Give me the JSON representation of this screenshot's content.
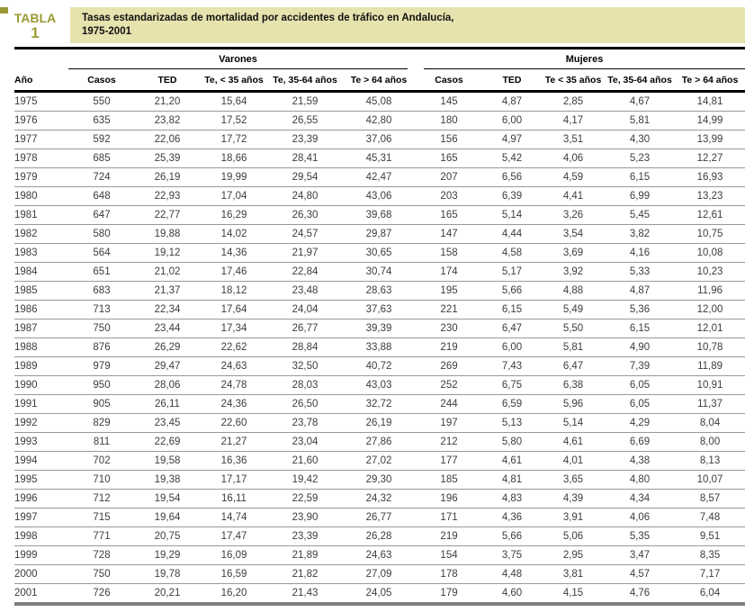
{
  "page": {
    "table_label": "TABLA",
    "table_number": "1",
    "title_line1": "Tasas estandarizadas de mortalidad por accidentes de tráfico en Andalucía,",
    "title_line2": "1975-2001"
  },
  "colors": {
    "accent_olive": "#9a9a35",
    "title_bar_bg": "#e7e3ae",
    "rule_black": "#000000",
    "row_separator_gray": "#999999",
    "bottom_rule_gray": "#7f7f7f"
  },
  "table": {
    "group_headers": [
      "Varones",
      "Mujeres"
    ],
    "columns": [
      "Año",
      "Casos",
      "TED",
      "Te, < 35 años",
      "Te, 35-64 años",
      "Te > 64 años",
      "Casos",
      "TED",
      "Te < 35 años",
      "Te, 35-64 años",
      "Te > 64 años"
    ],
    "rows": [
      [
        "1975",
        "550",
        "21,20",
        "15,64",
        "21,59",
        "45,08",
        "145",
        "4,87",
        "2,85",
        "4,67",
        "14,81"
      ],
      [
        "1976",
        "635",
        "23,82",
        "17,52",
        "26,55",
        "42,80",
        "180",
        "6,00",
        "4,17",
        "5,81",
        "14,99"
      ],
      [
        "1977",
        "592",
        "22,06",
        "17,72",
        "23,39",
        "37,06",
        "156",
        "4,97",
        "3,51",
        "4,30",
        "13,99"
      ],
      [
        "1978",
        "685",
        "25,39",
        "18,66",
        "28,41",
        "45,31",
        "165",
        "5,42",
        "4,06",
        "5,23",
        "12,27"
      ],
      [
        "1979",
        "724",
        "26,19",
        "19,99",
        "29,54",
        "42,47",
        "207",
        "6,56",
        "4,59",
        "6,15",
        "16,93"
      ],
      [
        "1980",
        "648",
        "22,93",
        "17,04",
        "24,80",
        "43,06",
        "203",
        "6,39",
        "4,41",
        "6,99",
        "13,23"
      ],
      [
        "1981",
        "647",
        "22,77",
        "16,29",
        "26,30",
        "39,68",
        "165",
        "5,14",
        "3,26",
        "5,45",
        "12,61"
      ],
      [
        "1982",
        "580",
        "19,88",
        "14,02",
        "24,57",
        "29,87",
        "147",
        "4,44",
        "3,54",
        "3,82",
        "10,75"
      ],
      [
        "1983",
        "564",
        "19,12",
        "14,36",
        "21,97",
        "30,65",
        "158",
        "4,58",
        "3,69",
        "4,16",
        "10,08"
      ],
      [
        "1984",
        "651",
        "21,02",
        "17,46",
        "22,84",
        "30,74",
        "174",
        "5,17",
        "3,92",
        "5,33",
        "10,23"
      ],
      [
        "1985",
        "683",
        "21,37",
        "18,12",
        "23,48",
        "28,63",
        "195",
        "5,66",
        "4,88",
        "4,87",
        "11,96"
      ],
      [
        "1986",
        "713",
        "22,34",
        "17,64",
        "24,04",
        "37,63",
        "221",
        "6,15",
        "5,49",
        "5,36",
        "12,00"
      ],
      [
        "1987",
        "750",
        "23,44",
        "17,34",
        "26,77",
        "39,39",
        "230",
        "6,47",
        "5,50",
        "6,15",
        "12,01"
      ],
      [
        "1988",
        "876",
        "26,29",
        "22,62",
        "28,84",
        "33,88",
        "219",
        "6,00",
        "5,81",
        "4,90",
        "10,78"
      ],
      [
        "1989",
        "979",
        "29,47",
        "24,63",
        "32,50",
        "40,72",
        "269",
        "7,43",
        "6,47",
        "7,39",
        "11,89"
      ],
      [
        "1990",
        "950",
        "28,06",
        "24,78",
        "28,03",
        "43,03",
        "252",
        "6,75",
        "6,38",
        "6,05",
        "10,91"
      ],
      [
        "1991",
        "905",
        "26,11",
        "24,36",
        "26,50",
        "32,72",
        "244",
        "6,59",
        "5,96",
        "6,05",
        "11,37"
      ],
      [
        "1992",
        "829",
        "23,45",
        "22,60",
        "23,78",
        "26,19",
        "197",
        "5,13",
        "5,14",
        "4,29",
        "8,04"
      ],
      [
        "1993",
        "811",
        "22,69",
        "21,27",
        "23,04",
        "27,86",
        "212",
        "5,80",
        "4,61",
        "6,69",
        "8,00"
      ],
      [
        "1994",
        "702",
        "19,58",
        "16,36",
        "21,60",
        "27,02",
        "177",
        "4,61",
        "4,01",
        "4,38",
        "8,13"
      ],
      [
        "1995",
        "710",
        "19,38",
        "17,17",
        "19,42",
        "29,30",
        "185",
        "4,81",
        "3,65",
        "4,80",
        "10,07"
      ],
      [
        "1996",
        "712",
        "19,54",
        "16,11",
        "22,59",
        "24,32",
        "196",
        "4,83",
        "4,39",
        "4,34",
        "8,57"
      ],
      [
        "1997",
        "715",
        "19,64",
        "14,74",
        "23,90",
        "26,77",
        "171",
        "4,36",
        "3,91",
        "4,06",
        "7,48"
      ],
      [
        "1998",
        "771",
        "20,75",
        "17,47",
        "23,39",
        "26,28",
        "219",
        "5,66",
        "5,06",
        "5,35",
        "9,51"
      ],
      [
        "1999",
        "728",
        "19,29",
        "16,09",
        "21,89",
        "24,63",
        "154",
        "3,75",
        "2,95",
        "3,47",
        "8,35"
      ],
      [
        "2000",
        "750",
        "19,78",
        "16,59",
        "21,82",
        "27,09",
        "178",
        "4,48",
        "3,81",
        "4,57",
        "7,17"
      ],
      [
        "2001",
        "726",
        "20,21",
        "16,20",
        "21,43",
        "24,05",
        "179",
        "4,60",
        "4,15",
        "4,76",
        "6,04"
      ]
    ]
  }
}
